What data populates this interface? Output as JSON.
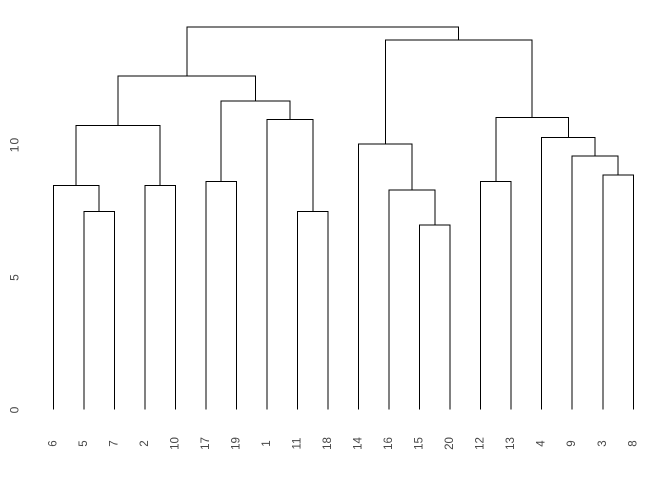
{
  "figure": {
    "background": "#ffffff"
  },
  "chart_data": {
    "type": "dendrogram",
    "title": "",
    "xlabel": "",
    "ylabel": "",
    "orientation": "leaves-bottom",
    "grid": false,
    "legend": false,
    "colors": {
      "line": "#000000",
      "text": "#474747",
      "background": "#ffffff"
    },
    "y_axis": {
      "side": "left",
      "ticks": [
        "0",
        "5",
        "10"
      ],
      "tick_values": [
        0,
        5,
        10
      ],
      "range": [
        0,
        14.6
      ],
      "axis_line_visible": false,
      "tick_marks_visible": false,
      "label_rotation_deg": 90
    },
    "leaf_order": [
      "6",
      "5",
      "7",
      "2",
      "10",
      "17",
      "19",
      "1",
      "11",
      "18",
      "14",
      "16",
      "15",
      "20",
      "12",
      "13",
      "4",
      "9",
      "3",
      "8"
    ],
    "leaf_label_rotation_deg": 90,
    "tree": {
      "height": 14.43,
      "children": [
        {
          "height": 12.58,
          "children": [
            {
              "height": 10.72,
              "children": [
                {
                  "height": 8.46,
                  "children": [
                    {
                      "leaf": "6"
                    },
                    {
                      "height": 7.47,
                      "children": [
                        {
                          "leaf": "5"
                        },
                        {
                          "leaf": "7"
                        }
                      ]
                    }
                  ]
                },
                {
                  "height": 8.46,
                  "children": [
                    {
                      "leaf": "2"
                    },
                    {
                      "leaf": "10"
                    }
                  ]
                }
              ]
            },
            {
              "height": 11.64,
              "children": [
                {
                  "height": 8.6,
                  "children": [
                    {
                      "leaf": "17"
                    },
                    {
                      "leaf": "19"
                    }
                  ]
                },
                {
                  "height": 10.95,
                  "children": [
                    {
                      "leaf": "1"
                    },
                    {
                      "height": 7.47,
                      "children": [
                        {
                          "leaf": "11"
                        },
                        {
                          "leaf": "18"
                        }
                      ]
                    }
                  ]
                }
              ]
            }
          ]
        },
        {
          "height": 13.94,
          "children": [
            {
              "height": 10.02,
              "children": [
                {
                  "leaf": "14"
                },
                {
                  "height": 8.28,
                  "children": [
                    {
                      "leaf": "16"
                    },
                    {
                      "height": 6.96,
                      "children": [
                        {
                          "leaf": "15"
                        },
                        {
                          "leaf": "20"
                        }
                      ]
                    }
                  ]
                }
              ]
            },
            {
              "height": 11.01,
              "children": [
                {
                  "height": 8.6,
                  "children": [
                    {
                      "leaf": "12"
                    },
                    {
                      "leaf": "13"
                    }
                  ]
                },
                {
                  "height": 10.26,
                  "children": [
                    {
                      "leaf": "4"
                    },
                    {
                      "height": 9.57,
                      "children": [
                        {
                          "leaf": "9"
                        },
                        {
                          "height": 8.85,
                          "children": [
                            {
                              "leaf": "3"
                            },
                            {
                              "leaf": "8"
                            }
                          ]
                        }
                      ]
                    }
                  ]
                }
              ]
            }
          ]
        }
      ]
    }
  }
}
